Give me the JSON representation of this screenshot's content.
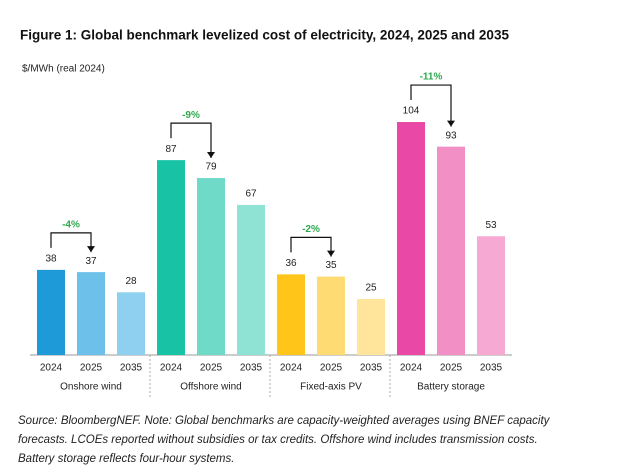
{
  "chart_data": {
    "type": "grouped-bar",
    "title": "Figure 1: Global benchmark levelized cost of electricity, 2024, 2025 and 2035",
    "y_label": "$/MWh (real 2024)",
    "groups": [
      {
        "name": "Onshore wind",
        "categories": [
          "2024",
          "2025",
          "2035"
        ],
        "values": [
          38,
          37,
          28
        ],
        "colors": [
          "#1f9ad8",
          "#6cc0ea",
          "#8fd0f0"
        ],
        "change": "-4%"
      },
      {
        "name": "Offshore wind",
        "categories": [
          "2024",
          "2025",
          "2035"
        ],
        "values": [
          87,
          79,
          67
        ],
        "colors": [
          "#17c3a4",
          "#6fdac8",
          "#8ee3d4"
        ],
        "change": "-9%"
      },
      {
        "name": "Fixed-axis PV",
        "categories": [
          "2024",
          "2025",
          "2035"
        ],
        "values": [
          36,
          35,
          25
        ],
        "colors": [
          "#ffc619",
          "#ffdb73",
          "#ffe59c"
        ],
        "change": "-2%"
      },
      {
        "name": "Battery storage",
        "categories": [
          "2024",
          "2025",
          "2035"
        ],
        "values": [
          104,
          93,
          53
        ],
        "colors": [
          "#e948a6",
          "#f290c6",
          "#f5a9d3"
        ],
        "change": "-11%"
      }
    ],
    "change_color": "#2eaa4e",
    "source": [
      "Source: BloombergNEF. Note: Global benchmarks are capacity-weighted averages using BNEF capacity",
      "forecasts. LCOEs reported without subsidies or tax credits. Offshore wind includes transmission costs.",
      "Battery storage reflects four-hour systems."
    ]
  }
}
